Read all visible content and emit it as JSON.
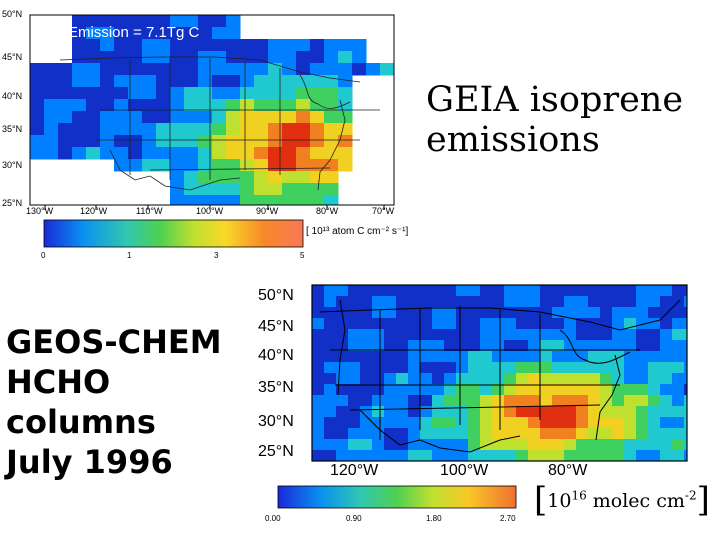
{
  "slide": {
    "title_line1": "GEIA isoprene",
    "title_line2": "emissions",
    "left_line1": "GEOS-CHEM",
    "left_line2": "HCHO",
    "left_line3": "columns",
    "left_line4": "July 1996",
    "unit_bracket_open": "[",
    "unit_mantissa": "10",
    "unit_exponent": "16",
    "unit_text": " molec cm",
    "unit_exponent2": "-2",
    "unit_bracket_close": "]"
  },
  "geia_map": {
    "emission_label": "Emission =  7.1Tg C",
    "source_label": "GEIA",
    "lat_labels": [
      "50°N",
      "45°N",
      "40°N",
      "35°N",
      "30°N",
      "25°N"
    ],
    "lon_labels": [
      "130°W",
      "120°W",
      "110°W",
      "100°W",
      "90°W",
      "80°W",
      "70°W"
    ],
    "colorbar_ticks": [
      "0",
      "1",
      "3",
      "5"
    ],
    "units_label": "[ 10¹³ atom C cm⁻² s⁻¹]"
  },
  "gc_map": {
    "lat_labels": [
      "50°N",
      "45°N",
      "40°N",
      "35°N",
      "30°N",
      "25°N"
    ],
    "lon_labels": [
      "120°W",
      "100°W",
      "80°W"
    ],
    "colorbar_ticks": [
      "0.00",
      "0.90",
      "1.80",
      "2.70"
    ]
  },
  "colors": {
    "scale": [
      "#1030c8",
      "#0080ff",
      "#20c8d0",
      "#40d060",
      "#c0e030",
      "#f0d020",
      "#f08020",
      "#e03010"
    ],
    "background": "#ffffff"
  }
}
